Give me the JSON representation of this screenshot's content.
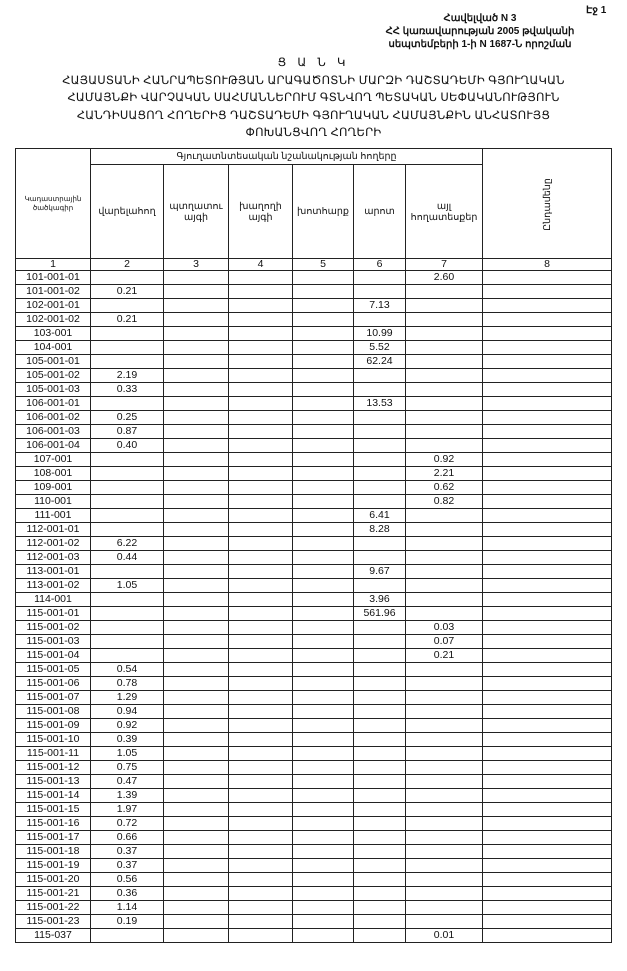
{
  "page_label": "Էջ 1",
  "appendix": [
    "Հավելված N 3",
    "ՀՀ կառավարության 2005 թվականի",
    "սեպտեմբերի 1-ի N 1687-Ն որոշման"
  ],
  "title": [
    "Ց Ա Ն Կ",
    "ՀԱՅԱՍՏԱՆԻ ՀԱՆՐԱՊԵՏՈՒԹՅԱՆ ԱՐԱԳԱԾՈՏՆԻ ՄԱՐԶԻ ԴԱՇՏԱԴԵՄԻ ԳՅՈՒՂԱԿԱՆ",
    "ՀԱՄԱՅՆՔԻ ՎԱՐՉԱԿԱՆ ՍԱՀՄԱՆՆԵՐՈՒՄ  ԳՏՆՎՈՂ  ՊԵՏԱԿԱՆ ՍԵՓԱԿԱՆՈՒԹՅՈՒՆ",
    "ՀԱՆԴԻՍԱՑՈՂ ՀՈՂԵՐԻՑ ԴԱՇՏԱԴԵՄԻ ԳՅՈՒՂԱԿԱՆ ՀԱՄԱՅՆՔԻՆ ԱՆՀԱՏՈՒՅՑ",
    "ՓՈԽԱՆՑՎՈՂ  ՀՈՂԵՐԻ"
  ],
  "table": {
    "group_header": "Գյուղատնտեսական նշանակության հողերը",
    "columns": [
      "Կադաստրային ծածկագիր",
      "վարելահող",
      "պտղատու այգի",
      "խաղողի այգի",
      "խոտհարք",
      "արոտ",
      "այլ հողատեսքեր",
      "Ընդամենը"
    ],
    "column_numbers": [
      "1",
      "2",
      "3",
      "4",
      "5",
      "6",
      "7",
      "8"
    ],
    "rows": [
      [
        "101-001-01",
        "",
        "",
        "",
        "",
        "",
        "2.60",
        ""
      ],
      [
        "101-001-02",
        "0.21",
        "",
        "",
        "",
        "",
        "",
        ""
      ],
      [
        "102-001-01",
        "",
        "",
        "",
        "",
        "7.13",
        "",
        ""
      ],
      [
        "102-001-02",
        "0.21",
        "",
        "",
        "",
        "",
        "",
        ""
      ],
      [
        "103-001",
        "",
        "",
        "",
        "",
        "10.99",
        "",
        ""
      ],
      [
        "104-001",
        "",
        "",
        "",
        "",
        "5.52",
        "",
        ""
      ],
      [
        "105-001-01",
        "",
        "",
        "",
        "",
        "62.24",
        "",
        ""
      ],
      [
        "105-001-02",
        "2.19",
        "",
        "",
        "",
        "",
        "",
        ""
      ],
      [
        "105-001-03",
        "0.33",
        "",
        "",
        "",
        "",
        "",
        ""
      ],
      [
        "106-001-01",
        "",
        "",
        "",
        "",
        "13.53",
        "",
        ""
      ],
      [
        "106-001-02",
        "0.25",
        "",
        "",
        "",
        "",
        "",
        ""
      ],
      [
        "106-001-03",
        "0.87",
        "",
        "",
        "",
        "",
        "",
        ""
      ],
      [
        "106-001-04",
        "0.40",
        "",
        "",
        "",
        "",
        "",
        ""
      ],
      [
        "107-001",
        "",
        "",
        "",
        "",
        "",
        "0.92",
        ""
      ],
      [
        "108-001",
        "",
        "",
        "",
        "",
        "",
        "2.21",
        ""
      ],
      [
        "109-001",
        "",
        "",
        "",
        "",
        "",
        "0.62",
        ""
      ],
      [
        "110-001",
        "",
        "",
        "",
        "",
        "",
        "0.82",
        ""
      ],
      [
        "111-001",
        "",
        "",
        "",
        "",
        "6.41",
        "",
        ""
      ],
      [
        "112-001-01",
        "",
        "",
        "",
        "",
        "8.28",
        "",
        ""
      ],
      [
        "112-001-02",
        "6.22",
        "",
        "",
        "",
        "",
        "",
        ""
      ],
      [
        "112-001-03",
        "0.44",
        "",
        "",
        "",
        "",
        "",
        ""
      ],
      [
        "113-001-01",
        "",
        "",
        "",
        "",
        "9.67",
        "",
        ""
      ],
      [
        "113-001-02",
        "1.05",
        "",
        "",
        "",
        "",
        "",
        ""
      ],
      [
        "114-001",
        "",
        "",
        "",
        "",
        "3.96",
        "",
        ""
      ],
      [
        "115-001-01",
        "",
        "",
        "",
        "",
        "561.96",
        "",
        ""
      ],
      [
        "115-001-02",
        "",
        "",
        "",
        "",
        "",
        "0.03",
        ""
      ],
      [
        "115-001-03",
        "",
        "",
        "",
        "",
        "",
        "0.07",
        ""
      ],
      [
        "115-001-04",
        "",
        "",
        "",
        "",
        "",
        "0.21",
        ""
      ],
      [
        "115-001-05",
        "0.54",
        "",
        "",
        "",
        "",
        "",
        ""
      ],
      [
        "115-001-06",
        "0.78",
        "",
        "",
        "",
        "",
        "",
        ""
      ],
      [
        "115-001-07",
        "1.29",
        "",
        "",
        "",
        "",
        "",
        ""
      ],
      [
        "115-001-08",
        "0.94",
        "",
        "",
        "",
        "",
        "",
        ""
      ],
      [
        "115-001-09",
        "0.92",
        "",
        "",
        "",
        "",
        "",
        ""
      ],
      [
        "115-001-10",
        "0.39",
        "",
        "",
        "",
        "",
        "",
        ""
      ],
      [
        "115-001-11",
        "1.05",
        "",
        "",
        "",
        "",
        "",
        ""
      ],
      [
        "115-001-12",
        "0.75",
        "",
        "",
        "",
        "",
        "",
        ""
      ],
      [
        "115-001-13",
        "0.47",
        "",
        "",
        "",
        "",
        "",
        ""
      ],
      [
        "115-001-14",
        "1.39",
        "",
        "",
        "",
        "",
        "",
        ""
      ],
      [
        "115-001-15",
        "1.97",
        "",
        "",
        "",
        "",
        "",
        ""
      ],
      [
        "115-001-16",
        "0.72",
        "",
        "",
        "",
        "",
        "",
        ""
      ],
      [
        "115-001-17",
        "0.66",
        "",
        "",
        "",
        "",
        "",
        ""
      ],
      [
        "115-001-18",
        "0.37",
        "",
        "",
        "",
        "",
        "",
        ""
      ],
      [
        "115-001-19",
        "0.37",
        "",
        "",
        "",
        "",
        "",
        ""
      ],
      [
        "115-001-20",
        "0.56",
        "",
        "",
        "",
        "",
        "",
        ""
      ],
      [
        "115-001-21",
        "0.36",
        "",
        "",
        "",
        "",
        "",
        ""
      ],
      [
        "115-001-22",
        "1.14",
        "",
        "",
        "",
        "",
        "",
        ""
      ],
      [
        "115-001-23",
        "0.19",
        "",
        "",
        "",
        "",
        "",
        ""
      ],
      [
        "115-037",
        "",
        "",
        "",
        "",
        "",
        "0.01",
        ""
      ]
    ]
  }
}
